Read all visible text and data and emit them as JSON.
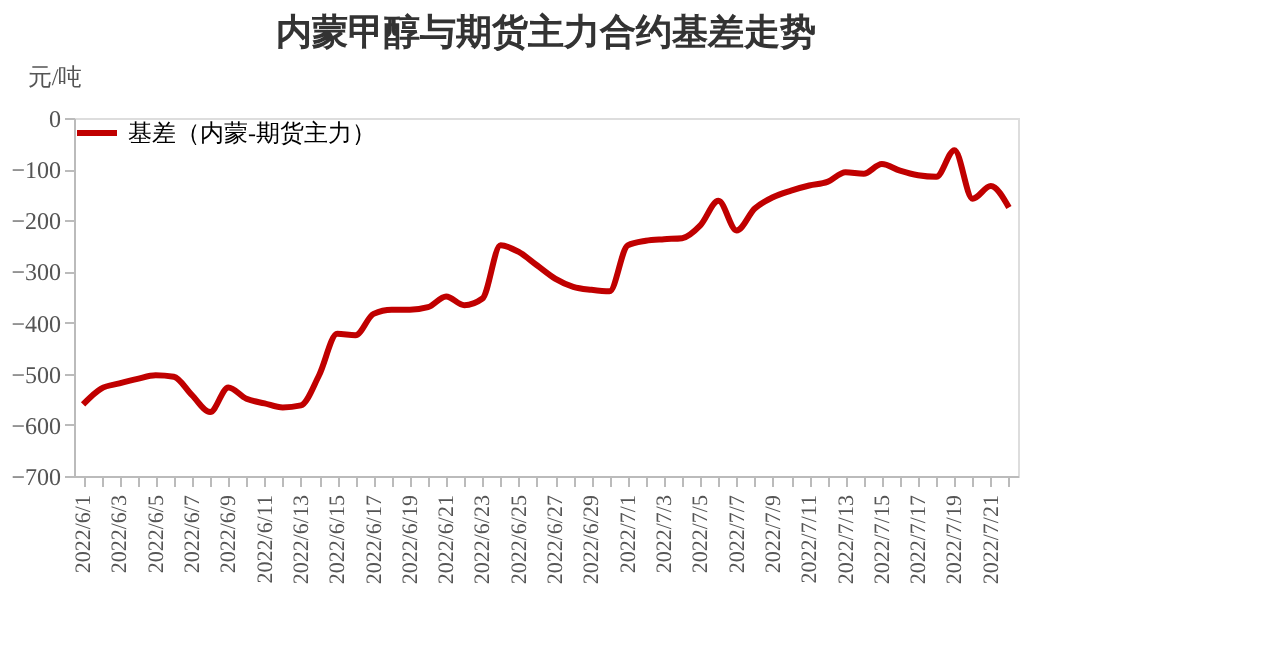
{
  "chart_data": {
    "type": "line",
    "title": "内蒙甲醇与期货主力合约基差走势",
    "ylabel": "元/吨",
    "categories": [
      "2022/6/1",
      null,
      "2022/6/3",
      null,
      "2022/6/5",
      null,
      "2022/6/7",
      null,
      "2022/6/9",
      null,
      "2022/6/11",
      null,
      "2022/6/13",
      null,
      "2022/6/15",
      null,
      "2022/6/17",
      null,
      "2022/6/19",
      null,
      "2022/6/21",
      null,
      "2022/6/23",
      null,
      "2022/6/25",
      null,
      "2022/6/27",
      null,
      "2022/6/29",
      null,
      "2022/7/1",
      null,
      "2022/7/3",
      null,
      "2022/7/5",
      null,
      "2022/7/7",
      null,
      "2022/7/9",
      null,
      "2022/7/11",
      null,
      "2022/7/13",
      null,
      "2022/7/15",
      null,
      "2022/7/17",
      null,
      "2022/7/19",
      null,
      "2022/7/21",
      null
    ],
    "series": [
      {
        "name": "基差（内蒙-期货主力）",
        "color": "#c00000",
        "values": [
          -560,
          -529,
          -519,
          -510,
          -503,
          -506,
          -542,
          -575,
          -527,
          -549,
          -558,
          -566,
          -562,
          -503,
          -422,
          -425,
          -383,
          -375,
          -375,
          -370,
          -349,
          -366,
          -353,
          -249,
          -262,
          -288,
          -314,
          -330,
          -336,
          -339,
          -249,
          -240,
          -237,
          -235,
          -210,
          -162,
          -220,
          -177,
          -155,
          -142,
          -132,
          -125,
          -106,
          -109,
          -90,
          -103,
          -112,
          -115,
          -63,
          -158,
          -133,
          -175
        ]
      }
    ],
    "ylim": [
      -700,
      0
    ],
    "yticks": [
      0,
      -100,
      -200,
      -300,
      -400,
      -500,
      -600,
      -700
    ],
    "grid": false,
    "legend": "top"
  }
}
